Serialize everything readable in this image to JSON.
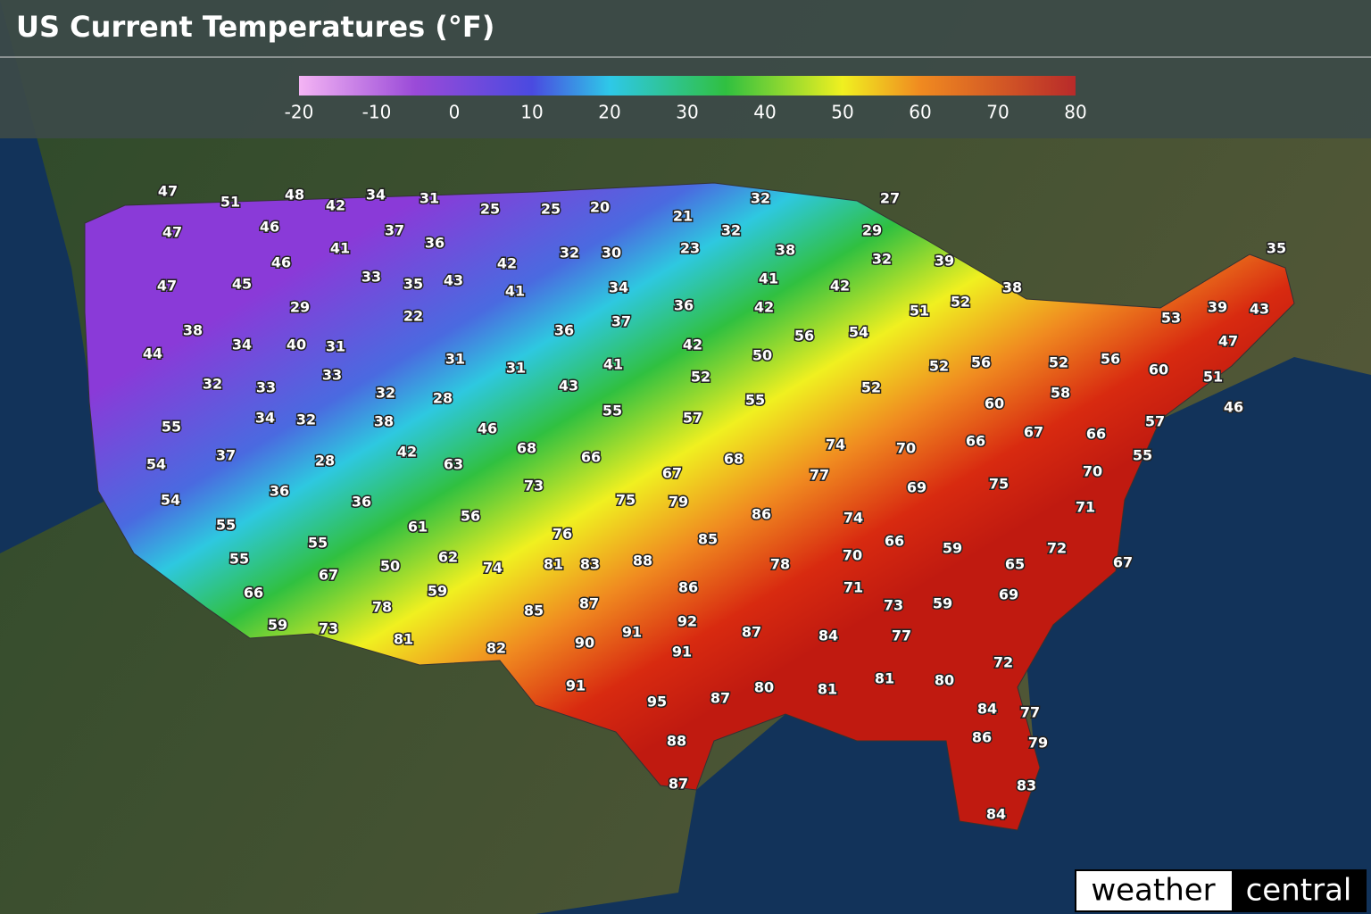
{
  "title": "US Current Temperatures (°F)",
  "legend": {
    "range": [
      -20,
      80
    ],
    "ticks": [
      -20,
      -10,
      0,
      10,
      20,
      30,
      40,
      50,
      60,
      70,
      80
    ]
  },
  "temperatures": [
    47,
    51,
    48,
    42,
    34,
    31,
    25,
    25,
    20,
    21,
    32,
    27,
    47,
    46,
    41,
    37,
    36,
    42,
    32,
    30,
    23,
    32,
    38,
    29,
    32,
    39,
    35,
    46,
    47,
    45,
    33,
    35,
    43,
    41,
    34,
    41,
    42,
    38,
    29,
    22,
    36,
    42,
    51,
    52,
    53,
    39,
    43,
    38,
    34,
    40,
    31,
    36,
    37,
    56,
    54,
    47,
    44,
    31,
    31,
    41,
    42,
    50,
    52,
    56,
    52,
    56,
    60,
    51,
    32,
    33,
    33,
    32,
    28,
    43,
    52,
    55,
    52,
    58,
    60,
    46,
    55,
    34,
    32,
    38,
    46,
    55,
    57,
    57,
    54,
    37,
    28,
    42,
    63,
    68,
    66,
    67,
    68,
    74,
    77,
    70,
    66,
    67,
    66,
    55,
    70,
    54,
    36,
    36,
    73,
    75,
    79,
    86,
    69,
    75,
    71,
    55,
    56,
    61,
    74,
    55,
    55,
    76,
    85,
    66,
    59,
    72,
    67,
    50,
    62,
    74,
    81,
    83,
    88,
    78,
    70,
    65,
    67,
    66,
    59,
    86,
    71,
    69,
    78,
    85,
    87,
    73,
    59,
    59,
    73,
    92,
    81,
    91,
    90,
    87,
    84,
    77,
    82,
    91,
    72,
    91,
    95,
    87,
    80,
    81,
    81,
    80,
    84,
    77,
    88,
    86,
    79,
    87,
    83,
    84
  ],
  "logo": {
    "part1": "weather",
    "part2": "central"
  }
}
